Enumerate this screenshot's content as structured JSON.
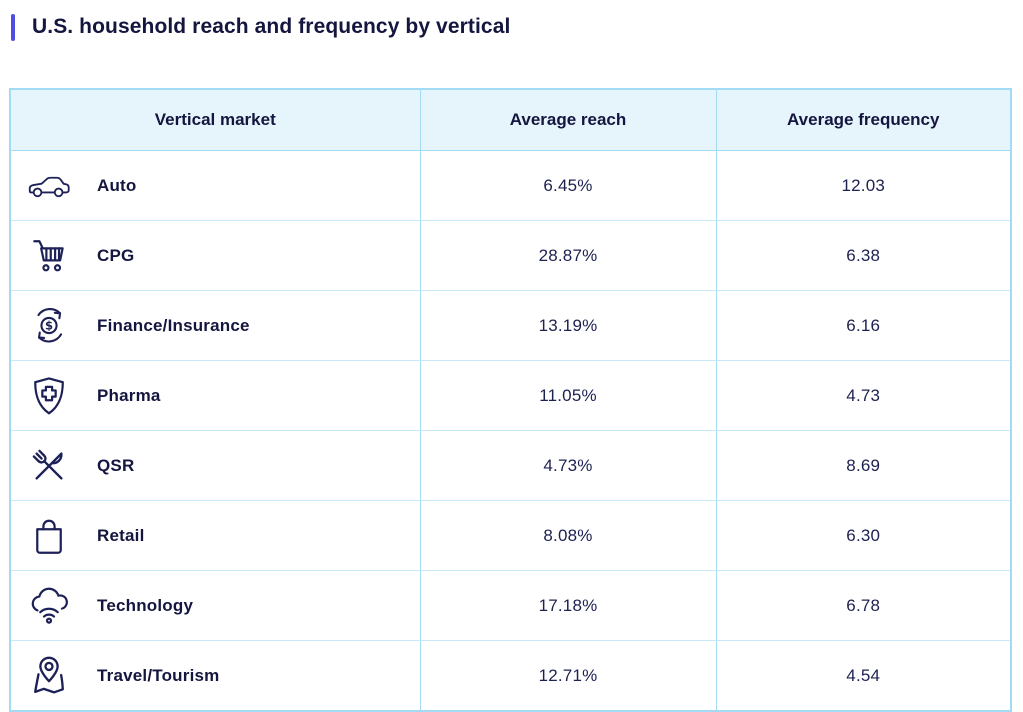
{
  "page": {
    "title": "U.S. household reach and frequency by vertical"
  },
  "colors": {
    "accent_bar": "#4d4fe3",
    "heading_text": "#14163f",
    "table_border": "#a4dbf4",
    "header_row_bg": "#e6f4fc",
    "value_text": "#1c2150",
    "icon_stroke": "#1e2157"
  },
  "table": {
    "columns": [
      "Vertical market",
      "Average reach",
      "Average frequency"
    ],
    "rows": [
      {
        "icon": "car-icon",
        "vertical": "Auto",
        "reach": "6.45%",
        "frequency": "12.03"
      },
      {
        "icon": "shopping-cart-icon",
        "vertical": "CPG",
        "reach": "28.87%",
        "frequency": "6.38"
      },
      {
        "icon": "dollar-cycle-icon",
        "vertical": "Finance/Insurance",
        "reach": "13.19%",
        "frequency": "6.16"
      },
      {
        "icon": "shield-cross-icon",
        "vertical": "Pharma",
        "reach": "11.05%",
        "frequency": "4.73"
      },
      {
        "icon": "utensils-icon",
        "vertical": "QSR",
        "reach": "4.73%",
        "frequency": "8.69"
      },
      {
        "icon": "shopping-bag-icon",
        "vertical": "Retail",
        "reach": "8.08%",
        "frequency": "6.30"
      },
      {
        "icon": "cloud-wifi-icon",
        "vertical": "Technology",
        "reach": "17.18%",
        "frequency": "6.78"
      },
      {
        "icon": "map-pin-icon",
        "vertical": "Travel/Tourism",
        "reach": "12.71%",
        "frequency": "4.54"
      }
    ]
  },
  "chart_data": {
    "type": "table",
    "title": "U.S. household reach and frequency by vertical",
    "columns": [
      "Vertical market",
      "Average reach",
      "Average frequency"
    ],
    "rows": [
      [
        "Auto",
        6.45,
        12.03
      ],
      [
        "CPG",
        28.87,
        6.38
      ],
      [
        "Finance/Insurance",
        13.19,
        6.16
      ],
      [
        "Pharma",
        11.05,
        4.73
      ],
      [
        "QSR",
        4.73,
        8.69
      ],
      [
        "Retail",
        8.08,
        6.3
      ],
      [
        "Technology",
        17.18,
        6.78
      ],
      [
        "Travel/Tourism",
        12.71,
        4.54
      ]
    ],
    "units": {
      "average_reach": "percent",
      "average_frequency": "count"
    }
  }
}
